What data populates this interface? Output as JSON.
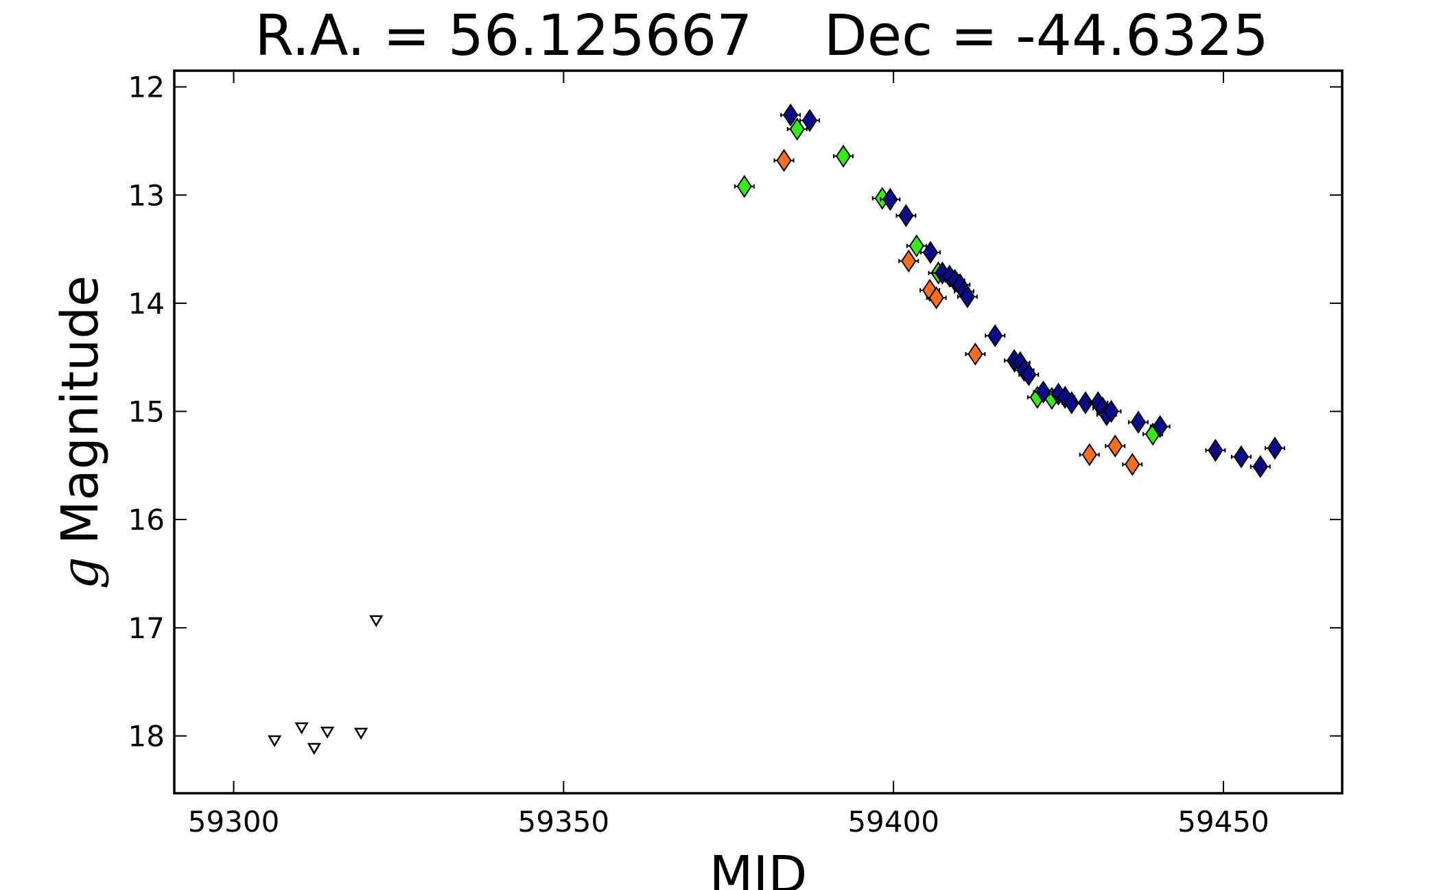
{
  "chart_data": {
    "type": "scatter",
    "title": "R.A. = 56.125667    Dec = -44.6325",
    "xlabel": "MJD",
    "ylabel_italic": "g",
    "ylabel": "Magnitude",
    "xlim": [
      59291,
      59468
    ],
    "ylim": [
      18.53,
      11.85
    ],
    "y_inverted": true,
    "grid": false,
    "x_ticks": [
      59300,
      59350,
      59400,
      59450
    ],
    "y_ticks": [
      12,
      13,
      14,
      15,
      16,
      17,
      18
    ],
    "colors": {
      "green": "#33ee11",
      "orange": "#ff6f1a",
      "navy": "#0a0a8f",
      "upper_limit": "#ffffff"
    },
    "series": [
      {
        "marker": "diamond",
        "color": "green",
        "points": [
          [
            59377.4,
            12.92
          ],
          [
            59385.4,
            12.39
          ],
          [
            59392.4,
            12.64
          ],
          [
            59398.3,
            13.03
          ],
          [
            59403.5,
            13.47
          ],
          [
            59406.8,
            13.72
          ],
          [
            59421.8,
            14.87
          ],
          [
            59424.0,
            14.88
          ],
          [
            59439.3,
            15.21
          ]
        ]
      },
      {
        "marker": "diamond",
        "color": "orange",
        "points": [
          [
            59383.4,
            12.68
          ],
          [
            59402.3,
            13.61
          ],
          [
            59405.5,
            13.88
          ],
          [
            59406.5,
            13.95
          ],
          [
            59412.4,
            14.47
          ],
          [
            59429.7,
            15.4
          ],
          [
            59433.6,
            15.32
          ],
          [
            59436.2,
            15.49
          ]
        ]
      },
      {
        "marker": "diamond",
        "color": "navy",
        "points": [
          [
            59384.4,
            12.26
          ],
          [
            59387.3,
            12.31
          ],
          [
            59399.5,
            13.04
          ],
          [
            59401.9,
            13.19
          ],
          [
            59405.6,
            13.53
          ],
          [
            59407.4,
            13.72
          ],
          [
            59408.5,
            13.75
          ],
          [
            59409.3,
            13.79
          ],
          [
            59410.1,
            13.83
          ],
          [
            59410.7,
            13.89
          ],
          [
            59411.2,
            13.94
          ],
          [
            59415.4,
            14.3
          ],
          [
            59418.3,
            14.53
          ],
          [
            59419.2,
            14.55
          ],
          [
            59419.8,
            14.62
          ],
          [
            59420.5,
            14.66
          ],
          [
            59422.7,
            14.82
          ],
          [
            59425.0,
            14.84
          ],
          [
            59426.0,
            14.87
          ],
          [
            59427.0,
            14.92
          ],
          [
            59429.1,
            14.92
          ],
          [
            59431.0,
            14.92
          ],
          [
            59431.7,
            14.97
          ],
          [
            59432.3,
            15.03
          ],
          [
            59433.0,
            15.0
          ],
          [
            59437.1,
            15.1
          ],
          [
            59440.4,
            15.14
          ],
          [
            59448.8,
            15.36
          ],
          [
            59452.7,
            15.42
          ],
          [
            59455.6,
            15.51
          ],
          [
            59457.8,
            15.34
          ]
        ]
      },
      {
        "marker": "triangle-down",
        "color": "upper_limit",
        "points": [
          [
            59306.2,
            18.04
          ],
          [
            59310.3,
            17.92
          ],
          [
            59312.2,
            18.11
          ],
          [
            59314.2,
            17.96
          ],
          [
            59319.3,
            17.97
          ],
          [
            59321.6,
            16.93
          ]
        ]
      }
    ]
  }
}
